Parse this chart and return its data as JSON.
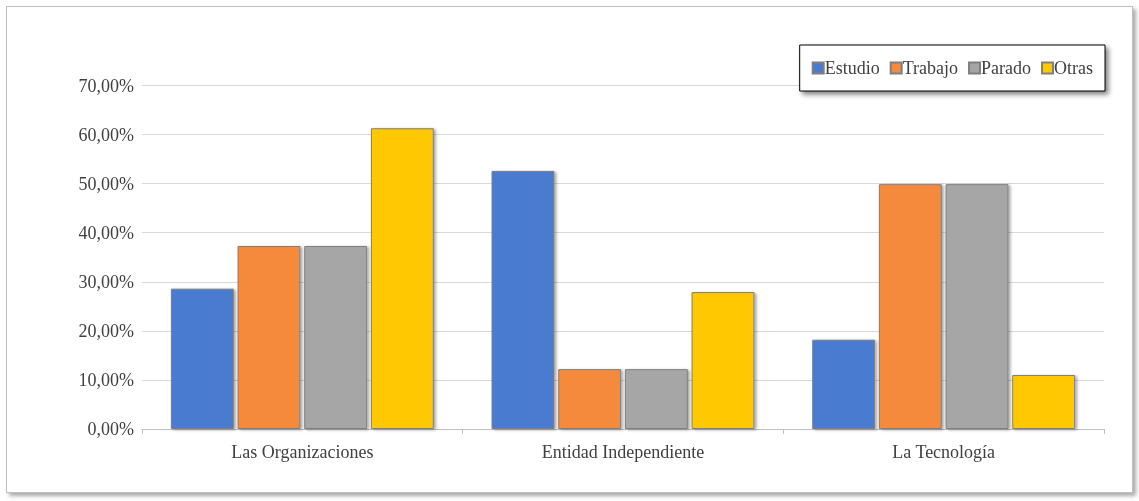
{
  "chart_data": {
    "type": "bar",
    "categories": [
      "Las Organizaciones",
      "Entidad Independiente",
      "La Tecnología"
    ],
    "series": [
      {
        "name": "Estudio",
        "color": "#4a7bd0",
        "values": [
          28.6,
          52.6,
          18.2
        ]
      },
      {
        "name": "Trabajo",
        "color": "#f58a3c",
        "values": [
          37.3,
          12.2,
          49.9
        ]
      },
      {
        "name": "Parado",
        "color": "#a6a6a6",
        "values": [
          37.3,
          12.2,
          49.9
        ]
      },
      {
        "name": "Otras",
        "color": "#ffc800",
        "values": [
          61.3,
          27.9,
          11.0
        ]
      }
    ],
    "ylim": [
      0,
      75
    ],
    "yticks": [
      {
        "value": 0,
        "label": "0,00%"
      },
      {
        "value": 10,
        "label": "10,00%"
      },
      {
        "value": 20,
        "label": "20,00%"
      },
      {
        "value": 30,
        "label": "30,00%"
      },
      {
        "value": 40,
        "label": "40,00%"
      },
      {
        "value": 50,
        "label": "50,00%"
      },
      {
        "value": 60,
        "label": "60,00%"
      },
      {
        "value": 70,
        "label": "70,00%"
      }
    ],
    "grid": "y",
    "legend": "top right"
  }
}
